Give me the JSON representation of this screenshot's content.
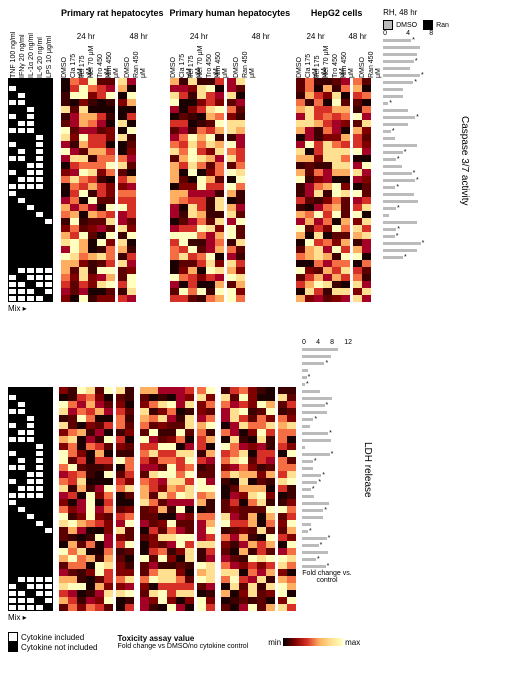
{
  "cytokines": [
    "TNF 100 ng/ml",
    "IFNγ 20 ng/ml",
    "IL-1α 20 ng/ml",
    "IL-6 20 ng/ml",
    "LPS 10 μg/ml"
  ],
  "cytokine_pattern_rows": 32,
  "cell_types": [
    {
      "name": "Primary rat hepatocytes",
      "drugs24": [
        "DMSO",
        "Cla 175 μM",
        "Tel 175 μM",
        "Nef 70 μM",
        "Tro 450 μM",
        "Nim 450 μM"
      ],
      "drugs48": [
        "DMSO",
        "Ran 450 μM"
      ]
    },
    {
      "name": "Primary human hepatocytes",
      "drugs24": [
        "DMSO",
        "Cla 175 μM",
        "Tel 175 μM",
        "Nef 70 μM",
        "Tro 450 μM",
        "Nim 450 μM"
      ],
      "drugs48": [
        "DMSO",
        "Ran 450 μM"
      ]
    },
    {
      "name": "HepG2 cells",
      "drugs24": [
        "DMSO",
        "Cla 175 μM",
        "Tel 175 μM",
        "Nef 70 μM",
        "Tro 450 μM",
        "Nim 450 μM"
      ],
      "drugs48": [
        "DMSO",
        "Ran 450 μM"
      ]
    }
  ],
  "timepoints": [
    "24 hr",
    "48 hr"
  ],
  "assays": [
    "Caspase 3/7 activity",
    "LDH release"
  ],
  "bar_title": "RH, 48 hr",
  "bar_legend": [
    {
      "label": "DMSO",
      "color": "#bbbbbb"
    },
    {
      "label": "Ran",
      "color": "#000000"
    }
  ],
  "bar_axis_caspase": {
    "label": "Fold change vs. control",
    "ticks": [
      0,
      4,
      8
    ]
  },
  "bar_axis_ldh": {
    "label": "Fold change vs. control",
    "ticks": [
      0,
      4,
      8,
      12
    ]
  },
  "legend": {
    "cyt_included": "Cytokine included",
    "cyt_excluded": "Cytokine not included",
    "tox_label": "Toxicity assay value",
    "tox_sub": "Fold change vs DMSO/no cytokine control",
    "grad_min": "min",
    "grad_max": "max"
  },
  "mix_label": "Mix ▸",
  "heatmap_colors": [
    "#1a0000",
    "#3d0000",
    "#5c0000",
    "#800000",
    "#a50026",
    "#d73027",
    "#f46d43",
    "#fdae61",
    "#fee090",
    "#ffffbf"
  ],
  "rows": 32
}
